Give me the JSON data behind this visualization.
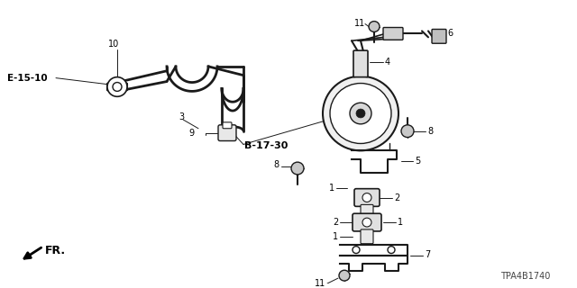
{
  "bg_color": "#ffffff",
  "text_color": "#000000",
  "line_color": "#1a1a1a",
  "labels": {
    "e1510": "E-15-10",
    "b1730": "B-17-30",
    "fr": "FR.",
    "diagram_code": "TPA4B1740"
  }
}
